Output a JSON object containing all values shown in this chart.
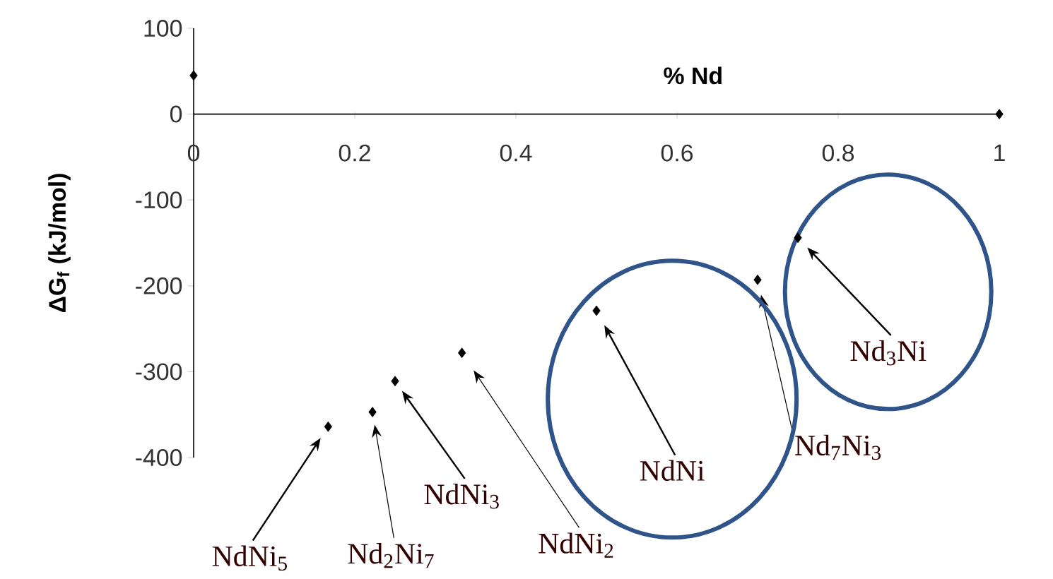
{
  "chart_data": {
    "type": "scatter",
    "xlabel": "% Nd",
    "ylabel": "ΔG$_{f}$ (kJ/mol)",
    "color": "#000000",
    "marker": "diamond",
    "grid": false,
    "x": [
      0,
      0.167,
      0.222,
      0.25,
      0.333,
      0.5,
      0.7,
      0.75,
      1
    ],
    "values": [
      45,
      -364,
      -347,
      -311,
      -278,
      -229,
      -193,
      -144,
      0
    ],
    "xlim": [
      0,
      1
    ],
    "ylim": [
      -400,
      100
    ],
    "xticks": [
      0,
      0.2,
      0.4,
      0.6,
      0.8,
      1
    ],
    "yticks": [
      -400,
      -300,
      -200,
      -100,
      0,
      100
    ],
    "annotations": [
      "NdNi$_{5}$",
      "Nd$_{2}$Ni$_{7}$",
      "NdNi$_{3}$",
      "NdNi$_{2}$",
      "NdNi",
      "Nd$_{7}$Ni$_{3}$",
      "Nd$_{3}$Ni"
    ]
  }
}
